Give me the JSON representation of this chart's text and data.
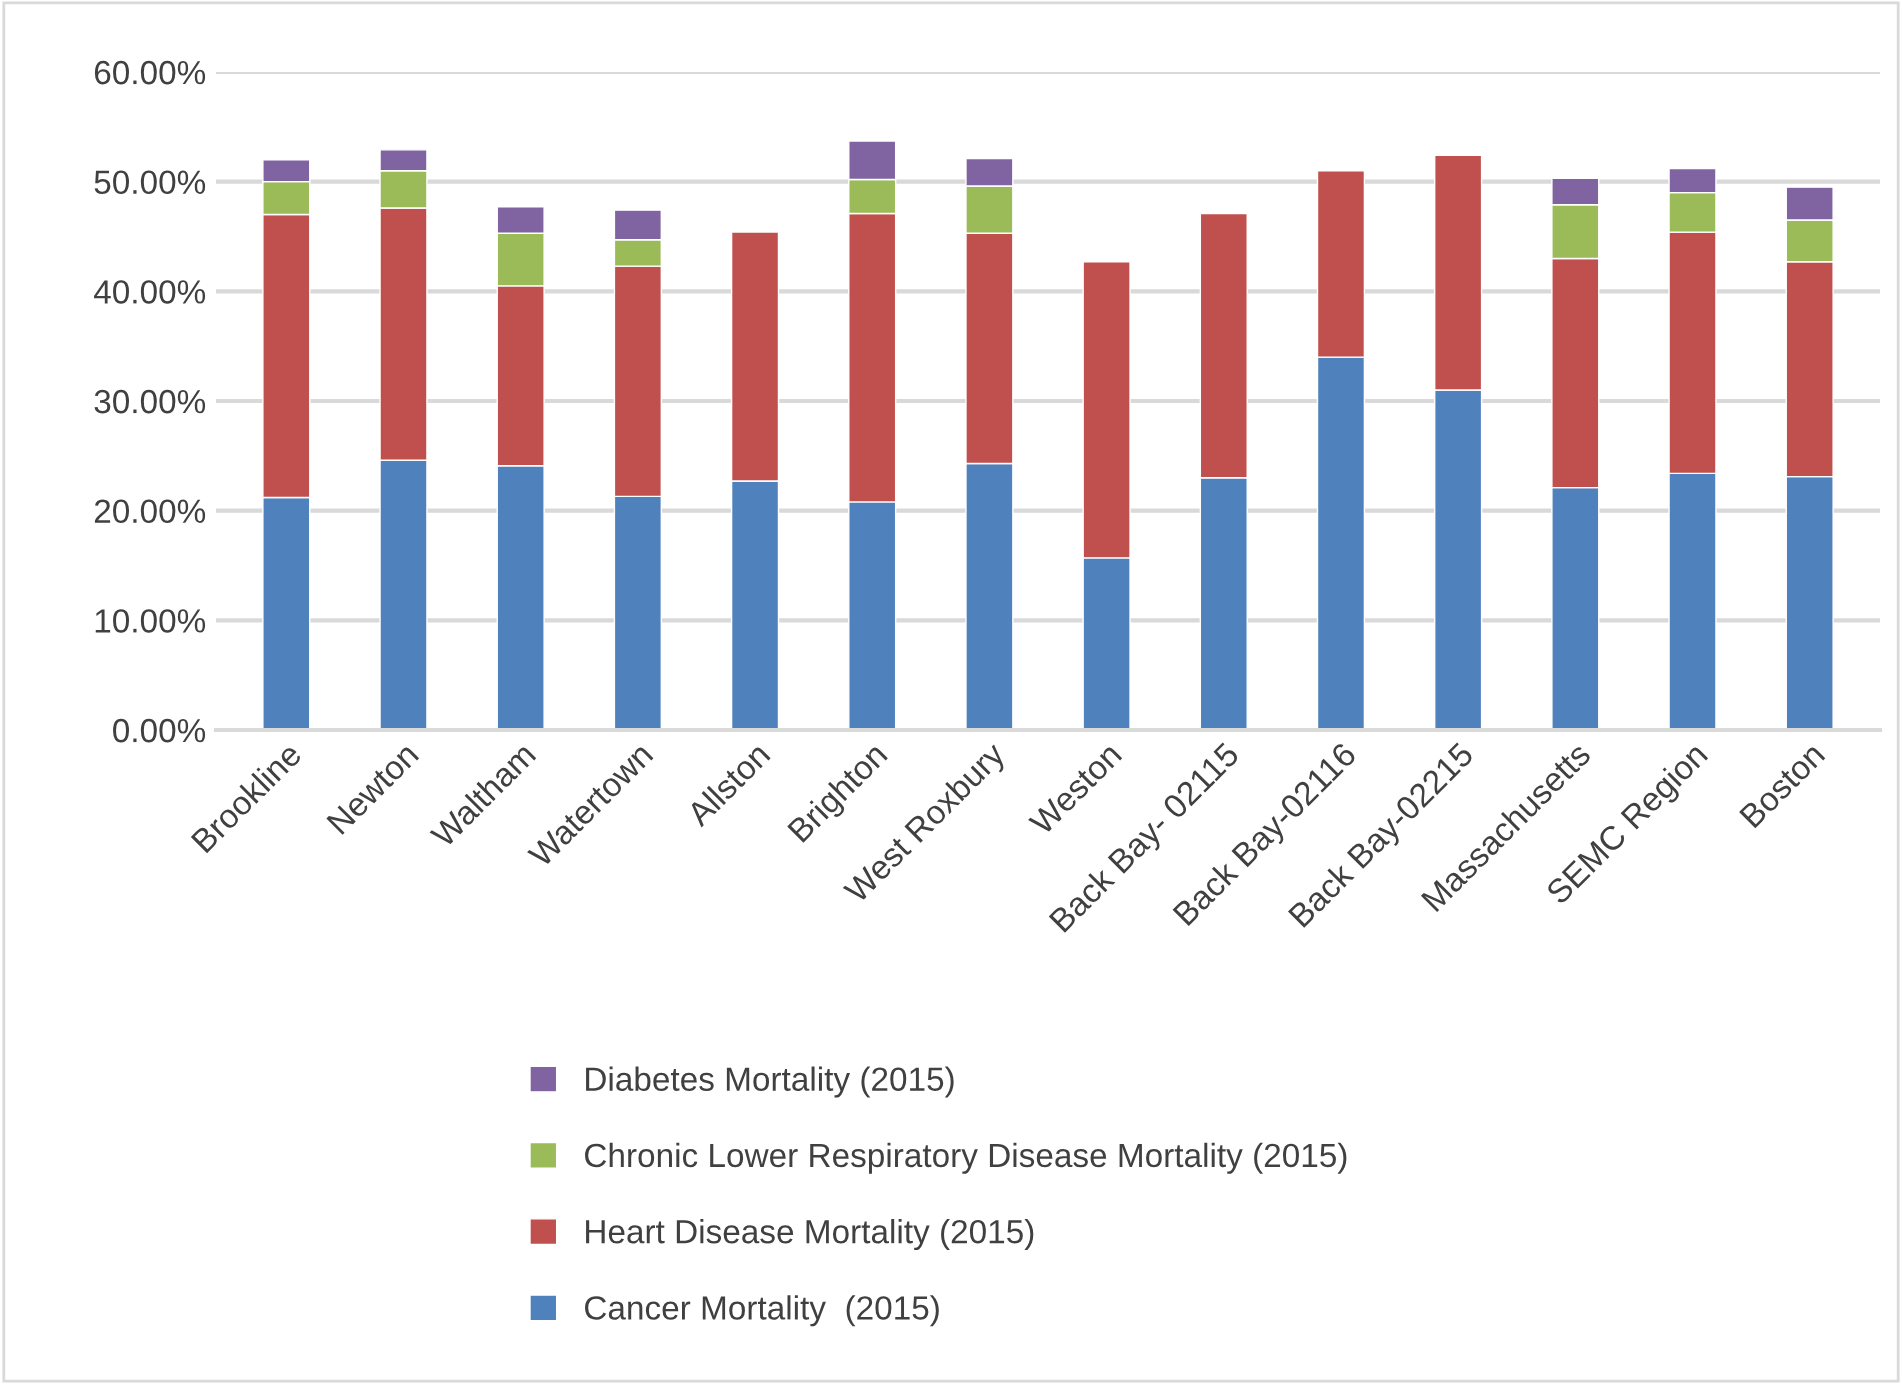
{
  "chart_data": {
    "type": "bar",
    "stacked": true,
    "categories": [
      "Brookline",
      "Newton",
      "Waltham",
      "Watertown",
      "Allston",
      "Brighton",
      "West Roxbury",
      "Weston",
      "Back Bay- 02115",
      "Back Bay-02116",
      "Back Bay-02215",
      "Massachusetts",
      "SEMC Region",
      "Boston"
    ],
    "series": [
      {
        "name": "Cancer Mortality  (2015)",
        "color": "#4f81bd",
        "values": [
          21.2,
          24.6,
          24.1,
          21.3,
          22.7,
          20.8,
          24.3,
          15.7,
          23.0,
          34.0,
          31.0,
          22.1,
          23.4,
          23.1
        ]
      },
      {
        "name": "Heart Disease Mortality (2015)",
        "color": "#c0504d",
        "values": [
          25.8,
          23.0,
          16.4,
          21.0,
          22.7,
          26.3,
          21.0,
          27.0,
          24.1,
          17.0,
          21.4,
          20.9,
          22.0,
          19.6
        ]
      },
      {
        "name": "Chronic Lower Respiratory Disease Mortality (2015)",
        "color": "#9bbb59",
        "values": [
          3.0,
          3.4,
          4.8,
          2.4,
          null,
          3.1,
          4.3,
          null,
          null,
          null,
          null,
          4.9,
          3.6,
          3.8
        ]
      },
      {
        "name": "Diabetes Mortality (2015)",
        "color": "#8064a2",
        "values": [
          2.0,
          1.9,
          2.4,
          2.7,
          null,
          3.5,
          2.5,
          null,
          null,
          null,
          null,
          2.4,
          2.2,
          3.0
        ]
      }
    ],
    "ylim": [
      0,
      60
    ],
    "yticks": [
      {
        "value": 0,
        "label": "0.00%"
      },
      {
        "value": 10,
        "label": "10.00%"
      },
      {
        "value": 20,
        "label": "20.00%"
      },
      {
        "value": 30,
        "label": "30.00%"
      },
      {
        "value": 40,
        "label": "40.00%"
      },
      {
        "value": 50,
        "label": "50.00%"
      },
      {
        "value": 60,
        "label": "60.00%"
      }
    ],
    "grid": "y",
    "legend": "bottom"
  }
}
